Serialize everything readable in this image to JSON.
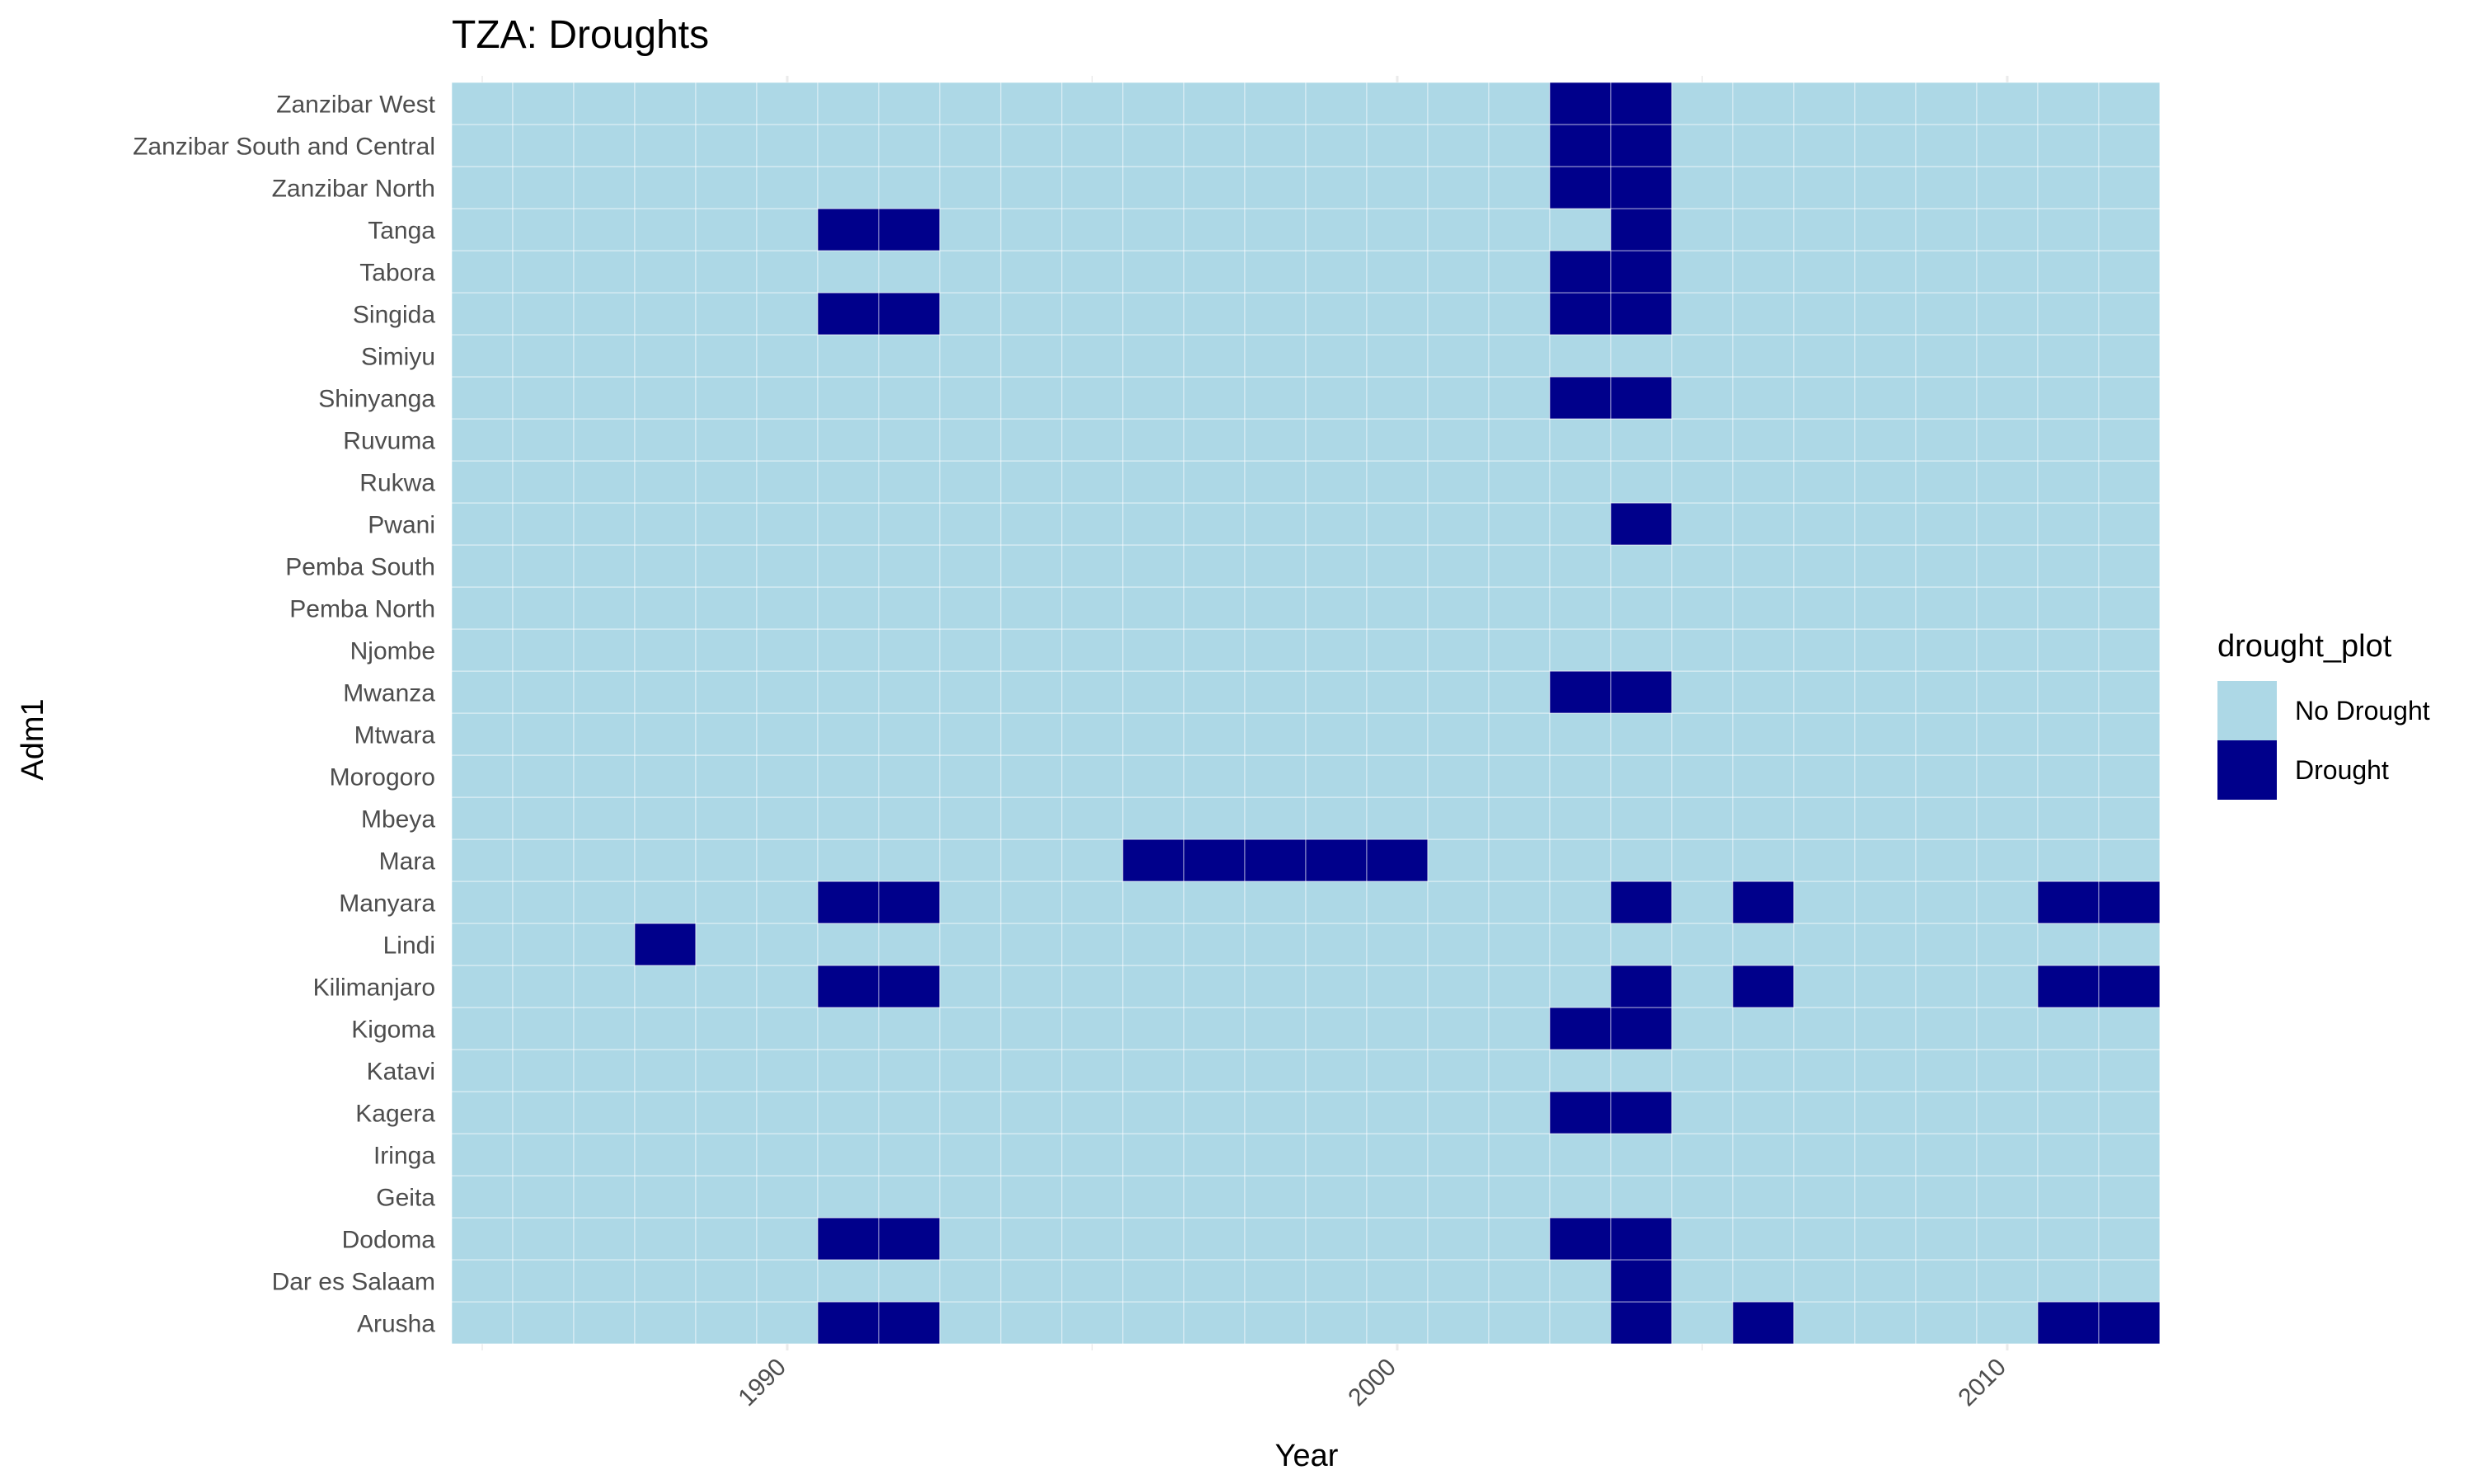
{
  "chart_data": {
    "type": "heatmap",
    "title": "TZA: Droughts",
    "xlabel": "Year",
    "ylabel": "Adm1",
    "xlim": [
      1984.5,
      2012.5
    ],
    "x_ticks": [
      1990,
      2000,
      2010
    ],
    "x_tick_labels": [
      "1990",
      "2000",
      "2010"
    ],
    "years": [
      1985,
      1986,
      1987,
      1988,
      1989,
      1990,
      1991,
      1992,
      1993,
      1994,
      1995,
      1996,
      1997,
      1998,
      1999,
      2000,
      2001,
      2002,
      2003,
      2004,
      2005,
      2006,
      2007,
      2008,
      2009,
      2010,
      2011,
      2012
    ],
    "regions": [
      "Arusha",
      "Dar es Salaam",
      "Dodoma",
      "Geita",
      "Iringa",
      "Kagera",
      "Katavi",
      "Kigoma",
      "Kilimanjaro",
      "Lindi",
      "Manyara",
      "Mara",
      "Mbeya",
      "Morogoro",
      "Mtwara",
      "Mwanza",
      "Njombe",
      "Pemba North",
      "Pemba South",
      "Pwani",
      "Rukwa",
      "Ruvuma",
      "Shinyanga",
      "Simiyu",
      "Singida",
      "Tabora",
      "Tanga",
      "Zanzibar North",
      "Zanzibar South and Central",
      "Zanzibar West"
    ],
    "droughts": [
      {
        "region": "Arusha",
        "years": [
          1991,
          1992,
          2004,
          2006,
          2011,
          2012
        ]
      },
      {
        "region": "Dar es Salaam",
        "years": [
          2004
        ]
      },
      {
        "region": "Dodoma",
        "years": [
          1991,
          1992,
          2003,
          2004
        ]
      },
      {
        "region": "Geita",
        "years": []
      },
      {
        "region": "Iringa",
        "years": []
      },
      {
        "region": "Kagera",
        "years": [
          2003,
          2004
        ]
      },
      {
        "region": "Katavi",
        "years": []
      },
      {
        "region": "Kigoma",
        "years": [
          2003,
          2004
        ]
      },
      {
        "region": "Kilimanjaro",
        "years": [
          1991,
          1992,
          2004,
          2006,
          2011,
          2012
        ]
      },
      {
        "region": "Lindi",
        "years": [
          1988
        ]
      },
      {
        "region": "Manyara",
        "years": [
          1991,
          1992,
          2004,
          2006,
          2011,
          2012
        ]
      },
      {
        "region": "Mara",
        "years": [
          1996,
          1997,
          1998,
          1999,
          2000
        ]
      },
      {
        "region": "Mbeya",
        "years": []
      },
      {
        "region": "Morogoro",
        "years": []
      },
      {
        "region": "Mtwara",
        "years": []
      },
      {
        "region": "Mwanza",
        "years": [
          2003,
          2004
        ]
      },
      {
        "region": "Njombe",
        "years": []
      },
      {
        "region": "Pemba North",
        "years": []
      },
      {
        "region": "Pemba South",
        "years": []
      },
      {
        "region": "Pwani",
        "years": [
          2004
        ]
      },
      {
        "region": "Rukwa",
        "years": []
      },
      {
        "region": "Ruvuma",
        "years": []
      },
      {
        "region": "Shinyanga",
        "years": [
          2003,
          2004
        ]
      },
      {
        "region": "Simiyu",
        "years": []
      },
      {
        "region": "Singida",
        "years": [
          1991,
          1992,
          2003,
          2004
        ]
      },
      {
        "region": "Tabora",
        "years": [
          2003,
          2004
        ]
      },
      {
        "region": "Tanga",
        "years": [
          1991,
          1992,
          2004
        ]
      },
      {
        "region": "Zanzibar North",
        "years": [
          2003,
          2004
        ]
      },
      {
        "region": "Zanzibar South and Central",
        "years": [
          2003,
          2004
        ]
      },
      {
        "region": "Zanzibar West",
        "years": [
          2003,
          2004
        ]
      }
    ],
    "legend": {
      "title": "drought_plot",
      "position": "right",
      "items": [
        {
          "label": "No Drought",
          "color": "#add8e6"
        },
        {
          "label": "Drought",
          "color": "#00008b"
        }
      ]
    },
    "grid": true
  },
  "colors": {
    "no_drought": "#add8e6",
    "drought": "#00008b",
    "gridline": "#ebebeb",
    "tile_border": "#ffffff"
  }
}
